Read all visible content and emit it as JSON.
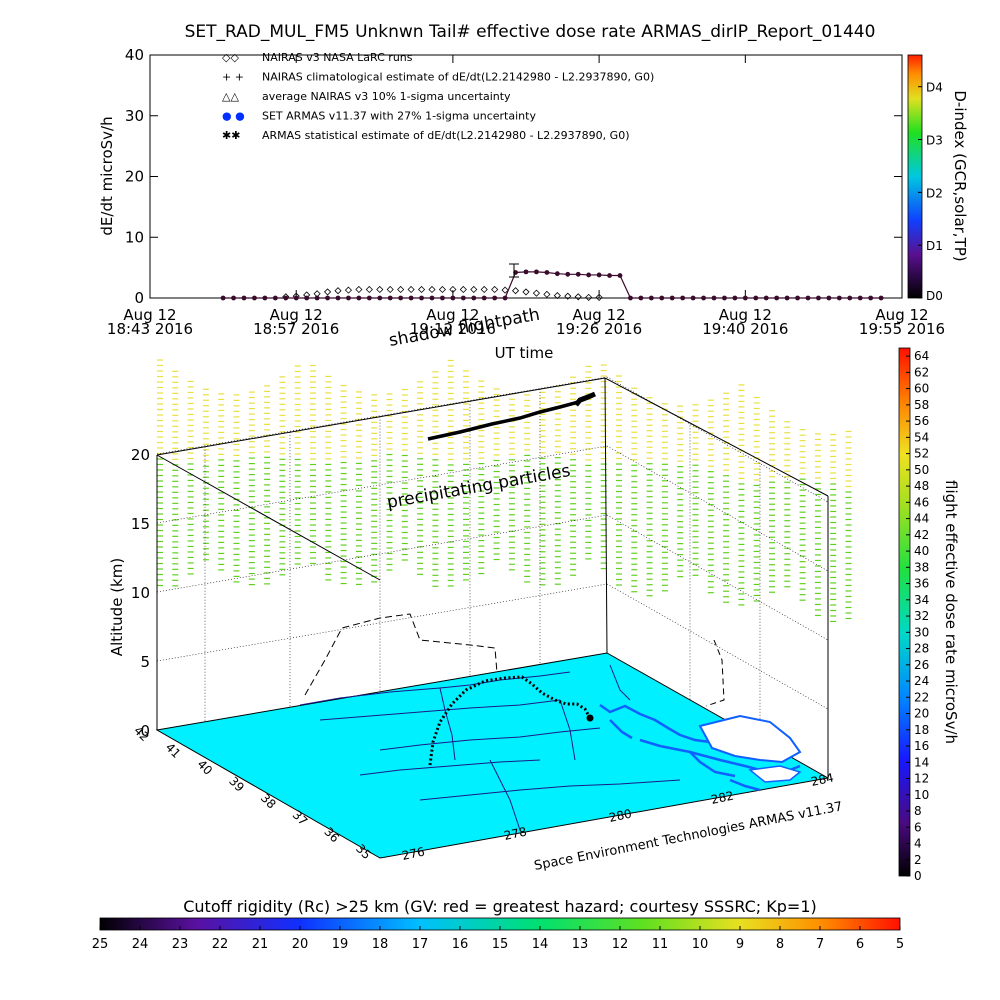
{
  "colors": {
    "ground": "#00f0ff",
    "flight": "#3a0a2a",
    "coast": "#1060ff",
    "upper_particles": "#e8e040",
    "lower_particles": "#60d020"
  },
  "chart_data": [
    {
      "id": "dose-rate",
      "type": "line",
      "title": "SET_RAD_MUL_FM5 Unknwn Tail#  effective dose rate ARMAS_dirIP_Report_01440",
      "ylabel": "dE/dt microSv/h",
      "xlabel": "UT time",
      "ylim": [
        0,
        40
      ],
      "yticks": [
        0,
        10,
        20,
        30,
        40
      ],
      "xlim": [
        0,
        72
      ],
      "xticks": [
        {
          "x": 0,
          "line1": "Aug 12",
          "line2": "18:43 2016"
        },
        {
          "x": 14,
          "line1": "Aug 12",
          "line2": "18:57 2016"
        },
        {
          "x": 29,
          "line1": "Aug 12",
          "line2": "19:12 2016"
        },
        {
          "x": 43,
          "line1": "Aug 12",
          "line2": "19:26 2016"
        },
        {
          "x": 57,
          "line1": "Aug 12",
          "line2": "19:40 2016"
        },
        {
          "x": 72,
          "line1": "Aug 12",
          "line2": "19:55 2016"
        }
      ],
      "legend": [
        {
          "marker": "◇◇",
          "label": "NAIRAS v3 NASA LaRC runs",
          "color": "#000000"
        },
        {
          "marker": "+ +",
          "label": "NAIRAS climatological estimate of dE/dt(L2.2142980 - L2.2937890, G0)",
          "color": "#000000"
        },
        {
          "marker": "△△",
          "label": "average NAIRAS v3 10% 1-sigma uncertainty",
          "color": "#000000"
        },
        {
          "marker": "● ●",
          "label": "SET ARMAS v11.37 with 27% 1-sigma uncertainty",
          "color": "#0030ff"
        },
        {
          "marker": "✱✱",
          "label": "ARMAS statistical estimate of dE/dt(L2.2142980 - L2.2937890, G0)",
          "color": "#000000"
        }
      ],
      "series": [
        {
          "name": "SET ARMAS v11.37 with 27% 1-sigma uncertainty",
          "x": [
            7,
            8,
            9,
            10,
            11,
            12,
            13,
            14,
            15,
            16,
            17,
            18,
            19,
            20,
            21,
            22,
            23,
            24,
            25,
            26,
            27,
            28,
            29,
            30,
            31,
            32,
            33,
            34,
            35,
            36,
            37,
            38,
            39,
            40,
            41,
            42,
            43,
            44,
            45,
            46,
            47,
            48,
            49,
            50,
            51,
            52,
            53,
            54,
            55,
            56,
            57,
            58,
            59,
            60,
            61,
            62,
            63,
            64,
            65,
            66,
            67,
            68,
            69,
            70
          ],
          "y": [
            0,
            0,
            0,
            0,
            0,
            0,
            0,
            0,
            0,
            0,
            0,
            0,
            0,
            0,
            0,
            0,
            0,
            0,
            0,
            0,
            0,
            0,
            0,
            0,
            0,
            0,
            0,
            0,
            4.2,
            4.3,
            4.3,
            4.2,
            4.0,
            3.9,
            3.9,
            3.8,
            3.8,
            3.7,
            3.7,
            0,
            0,
            0,
            0,
            0,
            0,
            0,
            0,
            0,
            0,
            0,
            0,
            0,
            0,
            0,
            0,
            0,
            0,
            0,
            0,
            0,
            0,
            0,
            0,
            0
          ]
        },
        {
          "name": "NAIRAS v3 NASA LaRC runs",
          "x": [
            13,
            14,
            15,
            16,
            17,
            18,
            19,
            20,
            21,
            22,
            23,
            24,
            25,
            26,
            27,
            28,
            29,
            30,
            31,
            32,
            33,
            34,
            35,
            36,
            37,
            38,
            39,
            40,
            41,
            42,
            43
          ],
          "y": [
            0.2,
            0.3,
            0.5,
            0.7,
            1.0,
            1.2,
            1.3,
            1.4,
            1.4,
            1.4,
            1.4,
            1.4,
            1.4,
            1.4,
            1.4,
            1.4,
            1.4,
            1.4,
            1.4,
            1.4,
            1.4,
            1.3,
            1.2,
            1.0,
            0.8,
            0.6,
            0.4,
            0.3,
            0.2,
            0.1,
            0.1
          ]
        }
      ],
      "colorbar": {
        "label": "D-index (GCR,solar,TP)",
        "ticks": [
          "D0",
          "D1",
          "D2",
          "D3",
          "D4"
        ],
        "tick_values": [
          0,
          1,
          2,
          3,
          4
        ],
        "range": [
          0,
          4.6
        ]
      }
    },
    {
      "id": "flight-3d",
      "type": "scatter",
      "ylabel": "Altitude (km)",
      "zticks": [
        0,
        5,
        10,
        15,
        20
      ],
      "zlim": [
        0,
        24
      ],
      "lat_ticks": [
        "42",
        "41",
        "40",
        "39",
        "38",
        "37",
        "36",
        "35"
      ],
      "lon_ticks": [
        "276",
        "278",
        "280",
        "282",
        "284"
      ],
      "annotations": {
        "shadow": "shadow flightpath",
        "particles": "precipitating particles",
        "credit": "Space Environment Technologies ARMAS v11.37"
      },
      "colorbar": {
        "label": "flight effective dose rate microSv/h",
        "ticks": [
          "0",
          "2",
          "4",
          "6",
          "8",
          "10",
          "12",
          "14",
          "16",
          "18",
          "20",
          "22",
          "24",
          "26",
          "28",
          "30",
          "32",
          "34",
          "36",
          "38",
          "40",
          "42",
          "44",
          "46",
          "48",
          "50",
          "52",
          "54",
          "56",
          "58",
          "60",
          "62",
          "64"
        ],
        "range": [
          0,
          65
        ]
      }
    },
    {
      "id": "cutoff-rigidity",
      "type": "heatmap",
      "label": "Cutoff rigidity (Rc) >25 km (GV: red = greatest hazard; courtesy SSSRC; Kp=1)",
      "ticks": [
        "25",
        "24",
        "23",
        "22",
        "21",
        "20",
        "19",
        "18",
        "17",
        "16",
        "15",
        "14",
        "13",
        "12",
        "11",
        "10",
        "9",
        "8",
        "7",
        "6",
        "5"
      ],
      "range": [
        25,
        5
      ]
    }
  ]
}
